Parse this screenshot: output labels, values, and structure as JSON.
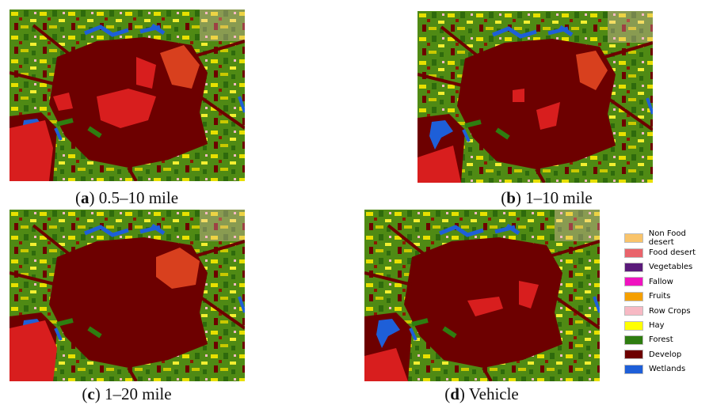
{
  "panels": [
    {
      "caption": [
        "(",
        "a",
        ") 0.5–10 mile"
      ]
    },
    {
      "caption": [
        "(",
        "b",
        ") 1–10 mile"
      ]
    },
    {
      "caption": [
        "(",
        "c",
        ") 1–20 mile"
      ]
    },
    {
      "caption": [
        "(",
        "d",
        ") Vehicle"
      ]
    }
  ],
  "legend": [
    {
      "label": "Non Food desert",
      "color": "#f9c46b"
    },
    {
      "label": "Food desert",
      "color": "#e9636b"
    },
    {
      "label": "Vegetables",
      "color": "#5a1a7a"
    },
    {
      "label": "Fallow",
      "color": "#f013c0"
    },
    {
      "label": "Fruits",
      "color": "#f5a000"
    },
    {
      "label": "Row Crops",
      "color": "#f7b9c4"
    },
    {
      "label": "Hay",
      "color": "#ffff00"
    },
    {
      "label": "Forest",
      "color": "#2e7d10"
    },
    {
      "label": "Develop",
      "color": "#6d0000"
    },
    {
      "label": "Wetlands",
      "color": "#1e5fd8"
    }
  ]
}
